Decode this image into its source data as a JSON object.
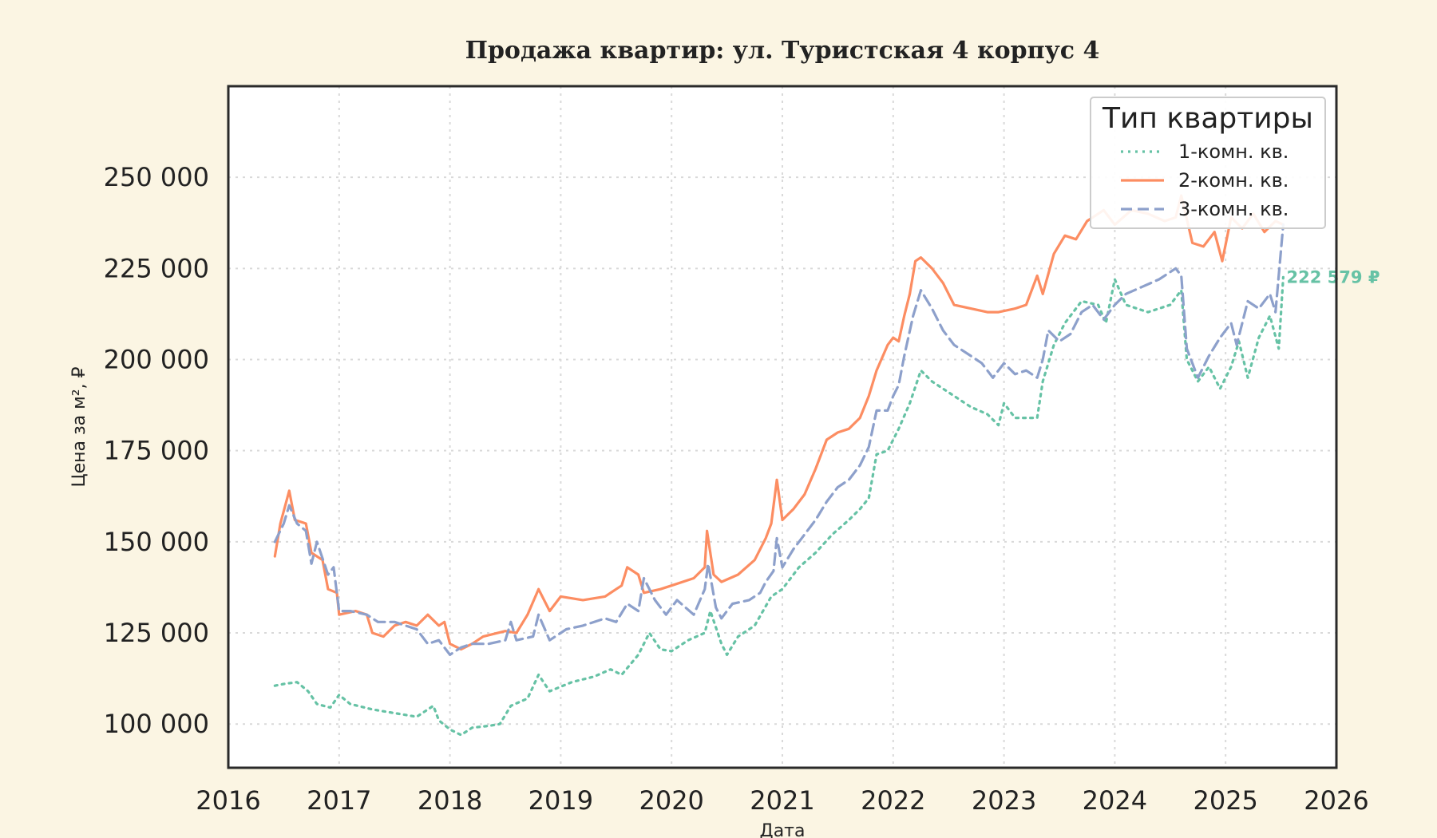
{
  "chart_data": {
    "type": "line",
    "title": "Продажа квартир: ул. Туристская 4 корпус 4",
    "xlabel": "Дата",
    "ylabel": "Цена за м², ₽",
    "xlim": [
      2016,
      2026
    ],
    "ylim": [
      88000,
      275000
    ],
    "x_ticks": [
      2016,
      2017,
      2018,
      2019,
      2020,
      2021,
      2022,
      2023,
      2024,
      2025,
      2026
    ],
    "x_tick_labels": [
      "2016",
      "2017",
      "2018",
      "2019",
      "2020",
      "2021",
      "2022",
      "2023",
      "2024",
      "2025",
      "2026"
    ],
    "y_ticks": [
      100000,
      125000,
      150000,
      175000,
      200000,
      225000,
      250000
    ],
    "y_tick_labels": [
      "100 000",
      "125 000",
      "150 000",
      "175 000",
      "200 000",
      "225 000",
      "250 000"
    ],
    "grid": true,
    "legend": {
      "title": "Тип квартиры",
      "position": "top-right"
    },
    "annotation": {
      "text": "222 579 ₽",
      "x": 2025.55,
      "y": 222579,
      "color": "#66c2a5"
    },
    "series": [
      {
        "name": "1-комн. кв.",
        "color": "#66c2a5",
        "style": "dotted",
        "points": [
          [
            2016.42,
            110500
          ],
          [
            2016.5,
            111000
          ],
          [
            2016.62,
            111500
          ],
          [
            2016.72,
            109000
          ],
          [
            2016.8,
            105500
          ],
          [
            2016.92,
            104500
          ],
          [
            2017.0,
            108000
          ],
          [
            2017.1,
            105500
          ],
          [
            2017.3,
            104000
          ],
          [
            2017.5,
            103000
          ],
          [
            2017.7,
            102000
          ],
          [
            2017.85,
            105000
          ],
          [
            2017.9,
            101000
          ],
          [
            2018.0,
            98500
          ],
          [
            2018.1,
            97000
          ],
          [
            2018.2,
            99000
          ],
          [
            2018.35,
            99500
          ],
          [
            2018.45,
            100000
          ],
          [
            2018.55,
            105000
          ],
          [
            2018.7,
            107000
          ],
          [
            2018.8,
            113500
          ],
          [
            2018.9,
            109000
          ],
          [
            2019.1,
            111500
          ],
          [
            2019.3,
            113000
          ],
          [
            2019.45,
            115000
          ],
          [
            2019.55,
            113500
          ],
          [
            2019.7,
            119000
          ],
          [
            2019.8,
            125000
          ],
          [
            2019.9,
            120500
          ],
          [
            2020.0,
            120000
          ],
          [
            2020.15,
            123000
          ],
          [
            2020.3,
            125000
          ],
          [
            2020.35,
            131000
          ],
          [
            2020.45,
            122000
          ],
          [
            2020.5,
            119000
          ],
          [
            2020.6,
            124000
          ],
          [
            2020.75,
            127000
          ],
          [
            2020.9,
            135000
          ],
          [
            2021.0,
            137000
          ],
          [
            2021.15,
            143000
          ],
          [
            2021.3,
            147000
          ],
          [
            2021.45,
            152000
          ],
          [
            2021.6,
            156000
          ],
          [
            2021.7,
            159000
          ],
          [
            2021.78,
            162000
          ],
          [
            2021.85,
            174000
          ],
          [
            2021.95,
            175000
          ],
          [
            2022.05,
            181000
          ],
          [
            2022.15,
            188000
          ],
          [
            2022.25,
            197000
          ],
          [
            2022.35,
            194000
          ],
          [
            2022.5,
            191000
          ],
          [
            2022.7,
            187000
          ],
          [
            2022.85,
            185000
          ],
          [
            2022.95,
            182000
          ],
          [
            2023.0,
            188000
          ],
          [
            2023.1,
            184000
          ],
          [
            2023.3,
            184000
          ],
          [
            2023.35,
            194000
          ],
          [
            2023.45,
            204000
          ],
          [
            2023.55,
            210000
          ],
          [
            2023.7,
            216000
          ],
          [
            2023.85,
            215000
          ],
          [
            2023.92,
            210000
          ],
          [
            2024.0,
            222000
          ],
          [
            2024.1,
            215000
          ],
          [
            2024.3,
            213000
          ],
          [
            2024.5,
            215000
          ],
          [
            2024.6,
            219000
          ],
          [
            2024.65,
            200000
          ],
          [
            2024.75,
            194000
          ],
          [
            2024.85,
            198000
          ],
          [
            2024.95,
            192000
          ],
          [
            2025.05,
            198000
          ],
          [
            2025.12,
            205000
          ],
          [
            2025.2,
            195000
          ],
          [
            2025.3,
            206000
          ],
          [
            2025.4,
            212000
          ],
          [
            2025.48,
            203000
          ],
          [
            2025.52,
            222579
          ]
        ]
      },
      {
        "name": "2-комн. кв.",
        "color": "#fc8d62",
        "style": "solid",
        "points": [
          [
            2016.42,
            146000
          ],
          [
            2016.47,
            155000
          ],
          [
            2016.55,
            164000
          ],
          [
            2016.6,
            156000
          ],
          [
            2016.7,
            155000
          ],
          [
            2016.75,
            147000
          ],
          [
            2016.85,
            145000
          ],
          [
            2016.9,
            137000
          ],
          [
            2016.98,
            136000
          ],
          [
            2017.0,
            130000
          ],
          [
            2017.15,
            131000
          ],
          [
            2017.25,
            130000
          ],
          [
            2017.3,
            125000
          ],
          [
            2017.4,
            124000
          ],
          [
            2017.5,
            127000
          ],
          [
            2017.6,
            128000
          ],
          [
            2017.7,
            127000
          ],
          [
            2017.8,
            130000
          ],
          [
            2017.9,
            127000
          ],
          [
            2017.95,
            128000
          ],
          [
            2018.0,
            122000
          ],
          [
            2018.1,
            120500
          ],
          [
            2018.2,
            122000
          ],
          [
            2018.3,
            124000
          ],
          [
            2018.5,
            125500
          ],
          [
            2018.6,
            125000
          ],
          [
            2018.7,
            130000
          ],
          [
            2018.8,
            137000
          ],
          [
            2018.9,
            131000
          ],
          [
            2019.0,
            135000
          ],
          [
            2019.2,
            134000
          ],
          [
            2019.4,
            135000
          ],
          [
            2019.5,
            137000
          ],
          [
            2019.55,
            138000
          ],
          [
            2019.6,
            143000
          ],
          [
            2019.7,
            141000
          ],
          [
            2019.75,
            136000
          ],
          [
            2019.9,
            137000
          ],
          [
            2020.0,
            138000
          ],
          [
            2020.2,
            140000
          ],
          [
            2020.3,
            143000
          ],
          [
            2020.32,
            153000
          ],
          [
            2020.38,
            141000
          ],
          [
            2020.45,
            139000
          ],
          [
            2020.6,
            141000
          ],
          [
            2020.75,
            145000
          ],
          [
            2020.85,
            151000
          ],
          [
            2020.9,
            155000
          ],
          [
            2020.95,
            167000
          ],
          [
            2021.0,
            156000
          ],
          [
            2021.1,
            159000
          ],
          [
            2021.2,
            163000
          ],
          [
            2021.3,
            170000
          ],
          [
            2021.4,
            178000
          ],
          [
            2021.5,
            180000
          ],
          [
            2021.6,
            181000
          ],
          [
            2021.7,
            184000
          ],
          [
            2021.78,
            190000
          ],
          [
            2021.85,
            197000
          ],
          [
            2021.95,
            204000
          ],
          [
            2022.0,
            206000
          ],
          [
            2022.05,
            205000
          ],
          [
            2022.1,
            212000
          ],
          [
            2022.15,
            218000
          ],
          [
            2022.2,
            227000
          ],
          [
            2022.25,
            228000
          ],
          [
            2022.35,
            225000
          ],
          [
            2022.45,
            221000
          ],
          [
            2022.55,
            215000
          ],
          [
            2022.7,
            214000
          ],
          [
            2022.85,
            213000
          ],
          [
            2022.95,
            213000
          ],
          [
            2023.1,
            214000
          ],
          [
            2023.2,
            215000
          ],
          [
            2023.3,
            223000
          ],
          [
            2023.35,
            218000
          ],
          [
            2023.45,
            229000
          ],
          [
            2023.55,
            234000
          ],
          [
            2023.65,
            233000
          ],
          [
            2023.75,
            238000
          ],
          [
            2023.9,
            241000
          ],
          [
            2024.0,
            237000
          ],
          [
            2024.15,
            241000
          ],
          [
            2024.3,
            240000
          ],
          [
            2024.45,
            238000
          ],
          [
            2024.55,
            239000
          ],
          [
            2024.6,
            245000
          ],
          [
            2024.7,
            232000
          ],
          [
            2024.8,
            231000
          ],
          [
            2024.9,
            235000
          ],
          [
            2024.97,
            227000
          ],
          [
            2025.05,
            239000
          ],
          [
            2025.15,
            236000
          ],
          [
            2025.25,
            240000
          ],
          [
            2025.35,
            235000
          ],
          [
            2025.45,
            238000
          ],
          [
            2025.52,
            237000
          ]
        ]
      },
      {
        "name": "3-комн. кв.",
        "color": "#8da0cb",
        "style": "dashed",
        "points": [
          [
            2016.42,
            150000
          ],
          [
            2016.5,
            155000
          ],
          [
            2016.55,
            160000
          ],
          [
            2016.62,
            155000
          ],
          [
            2016.7,
            153000
          ],
          [
            2016.75,
            144000
          ],
          [
            2016.8,
            150000
          ],
          [
            2016.9,
            141000
          ],
          [
            2016.95,
            143000
          ],
          [
            2017.0,
            131000
          ],
          [
            2017.1,
            131000
          ],
          [
            2017.25,
            130000
          ],
          [
            2017.35,
            128000
          ],
          [
            2017.5,
            128000
          ],
          [
            2017.6,
            127000
          ],
          [
            2017.7,
            126000
          ],
          [
            2017.8,
            122000
          ],
          [
            2017.9,
            123000
          ],
          [
            2018.0,
            119000
          ],
          [
            2018.1,
            121000
          ],
          [
            2018.2,
            122000
          ],
          [
            2018.35,
            122000
          ],
          [
            2018.5,
            123000
          ],
          [
            2018.55,
            128000
          ],
          [
            2018.6,
            123000
          ],
          [
            2018.75,
            124000
          ],
          [
            2018.8,
            130000
          ],
          [
            2018.9,
            123000
          ],
          [
            2019.05,
            126000
          ],
          [
            2019.2,
            127000
          ],
          [
            2019.4,
            129000
          ],
          [
            2019.5,
            128000
          ],
          [
            2019.6,
            133000
          ],
          [
            2019.7,
            131000
          ],
          [
            2019.75,
            140000
          ],
          [
            2019.85,
            134000
          ],
          [
            2019.95,
            130000
          ],
          [
            2020.05,
            134000
          ],
          [
            2020.2,
            130000
          ],
          [
            2020.3,
            137000
          ],
          [
            2020.33,
            144000
          ],
          [
            2020.4,
            132000
          ],
          [
            2020.45,
            129000
          ],
          [
            2020.55,
            133000
          ],
          [
            2020.7,
            134000
          ],
          [
            2020.8,
            136000
          ],
          [
            2020.85,
            139000
          ],
          [
            2020.92,
            142000
          ],
          [
            2020.95,
            151000
          ],
          [
            2021.0,
            143000
          ],
          [
            2021.1,
            148000
          ],
          [
            2021.2,
            152000
          ],
          [
            2021.3,
            156000
          ],
          [
            2021.4,
            161000
          ],
          [
            2021.5,
            165000
          ],
          [
            2021.6,
            167000
          ],
          [
            2021.7,
            171000
          ],
          [
            2021.78,
            176000
          ],
          [
            2021.85,
            186000
          ],
          [
            2021.95,
            186000
          ],
          [
            2022.0,
            190000
          ],
          [
            2022.05,
            193000
          ],
          [
            2022.1,
            201000
          ],
          [
            2022.18,
            212000
          ],
          [
            2022.25,
            219000
          ],
          [
            2022.35,
            214000
          ],
          [
            2022.45,
            208000
          ],
          [
            2022.55,
            204000
          ],
          [
            2022.7,
            201000
          ],
          [
            2022.8,
            199000
          ],
          [
            2022.9,
            195000
          ],
          [
            2023.0,
            199000
          ],
          [
            2023.1,
            196000
          ],
          [
            2023.2,
            197000
          ],
          [
            2023.3,
            195000
          ],
          [
            2023.35,
            200000
          ],
          [
            2023.4,
            208000
          ],
          [
            2023.5,
            205000
          ],
          [
            2023.6,
            207000
          ],
          [
            2023.7,
            213000
          ],
          [
            2023.8,
            215000
          ],
          [
            2023.9,
            211000
          ],
          [
            2024.0,
            215000
          ],
          [
            2024.1,
            218000
          ],
          [
            2024.25,
            220000
          ],
          [
            2024.4,
            222000
          ],
          [
            2024.55,
            225000
          ],
          [
            2024.6,
            223000
          ],
          [
            2024.65,
            203000
          ],
          [
            2024.75,
            195000
          ],
          [
            2024.85,
            201000
          ],
          [
            2024.95,
            206000
          ],
          [
            2025.05,
            210000
          ],
          [
            2025.1,
            204000
          ],
          [
            2025.2,
            216000
          ],
          [
            2025.3,
            214000
          ],
          [
            2025.4,
            218000
          ],
          [
            2025.45,
            213000
          ],
          [
            2025.52,
            237000
          ]
        ]
      }
    ]
  }
}
